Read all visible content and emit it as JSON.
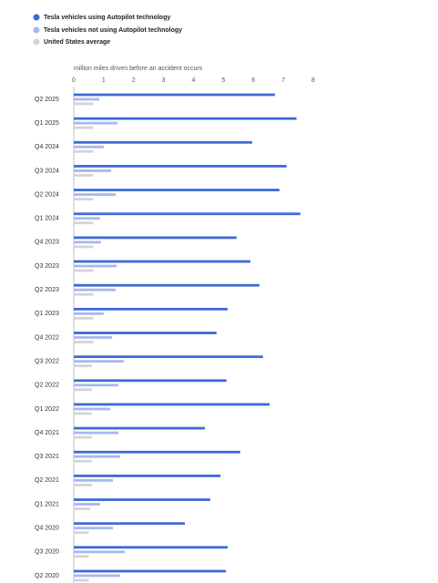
{
  "chart_data": {
    "type": "bar",
    "orientation": "horizontal",
    "x_label": "million miles driven before an accident occurs",
    "categories": [
      "Q2 2025",
      "Q1 2025",
      "Q4 2024",
      "Q3 2024",
      "Q2 2024",
      "Q1 2024",
      "Q4 2023",
      "Q3 2023",
      "Q2 2023",
      "Q1 2023",
      "Q4 2022",
      "Q3 2022",
      "Q2 2022",
      "Q1 2022",
      "Q4 2021",
      "Q3 2021",
      "Q2 2021",
      "Q1 2021",
      "Q4 2020",
      "Q3 2020",
      "Q2 2020"
    ],
    "series": [
      {
        "name": "Tesla vehicles using Autopilot technology",
        "color": "#3e6ad6",
        "values": [
          6.72,
          7.44,
          5.96,
          7.11,
          6.87,
          7.57,
          5.44,
          5.9,
          6.2,
          5.14,
          4.77,
          6.32,
          5.1,
          6.54,
          4.38,
          5.56,
          4.9,
          4.56,
          3.71,
          5.14,
          5.08
        ]
      },
      {
        "name": "Tesla vehicles not using Autopilot technology",
        "color": "#a7b8ef",
        "values": [
          0.85,
          1.46,
          1.0,
          1.25,
          1.4,
          0.88,
          0.91,
          1.43,
          1.4,
          1.0,
          1.28,
          1.67,
          1.49,
          1.22,
          1.49,
          1.55,
          1.31,
          0.88,
          1.31,
          1.7,
          1.55
        ]
      },
      {
        "name": "United States average",
        "color": "#d3d3d8",
        "values": [
          0.65,
          0.65,
          0.65,
          0.65,
          0.65,
          0.65,
          0.65,
          0.65,
          0.65,
          0.65,
          0.65,
          0.6,
          0.6,
          0.6,
          0.6,
          0.6,
          0.6,
          0.55,
          0.5,
          0.5,
          0.5
        ]
      }
    ],
    "xlim": [
      0,
      8
    ],
    "xticks": [
      0,
      1,
      2,
      3,
      4,
      5,
      6,
      7,
      8
    ],
    "grid": false,
    "legend": "top-left"
  }
}
